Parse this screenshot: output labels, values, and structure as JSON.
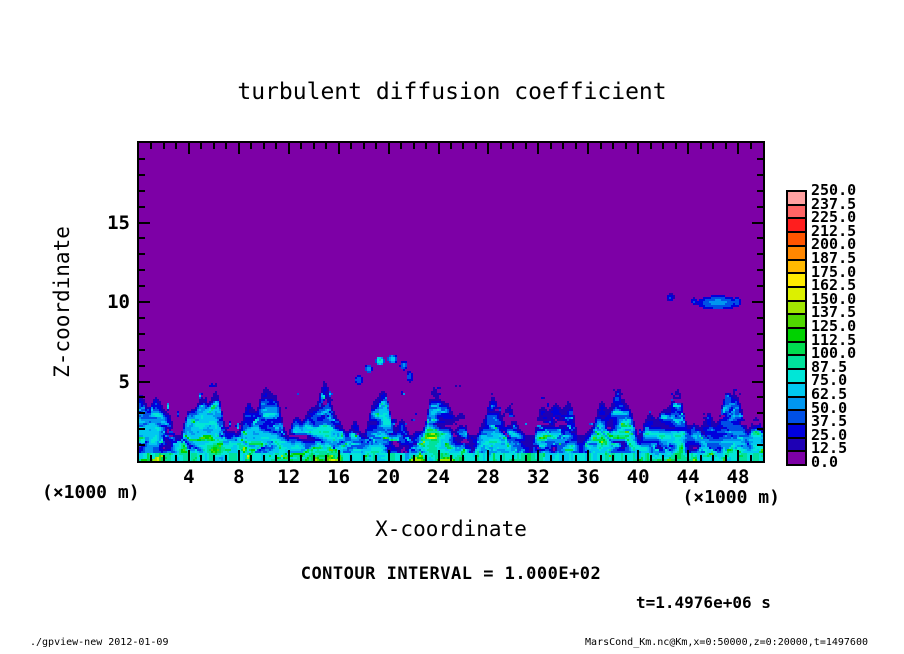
{
  "header": {
    "title": "turbulent diffusion coefficient"
  },
  "axes": {
    "x": {
      "label": "X-coordinate",
      "units": "(×1000 m)"
    },
    "y": {
      "label": "Z-coordinate",
      "units": "(×1000 m)"
    }
  },
  "annotations": {
    "contour_interval": "CONTOUR INTERVAL = 1.000E+02",
    "time": "t=1.4976e+06 s"
  },
  "footer": {
    "left": "./gpview-new  2012-01-09",
    "right": "MarsCond_Km.nc@Km,x=0:50000,z=0:20000,t=1497600"
  },
  "chart_data": {
    "type": "heatmap",
    "title": "turbulent diffusion coefficient",
    "xlabel": "X-coordinate",
    "ylabel": "Z-coordinate",
    "axis_units": "×1000 m",
    "xlim": [
      0,
      50
    ],
    "ylim": [
      0,
      20
    ],
    "x_ticks": [
      4,
      8,
      12,
      16,
      20,
      24,
      28,
      32,
      36,
      40,
      44,
      48
    ],
    "x_minor_step": 1,
    "x_major_step": 4,
    "y_ticks": [
      5,
      10,
      15
    ],
    "y_minor_step": 1,
    "y_major_step": 5,
    "grid": false,
    "contour_interval": "1.000E+02",
    "time": "t=1.4976e+06 s",
    "colorbar": {
      "position": "right",
      "labels_top_down": [
        "250.0",
        "237.5",
        "225.0",
        "212.5",
        "200.0",
        "187.5",
        "175.0",
        "162.5",
        "150.0",
        "137.5",
        "125.0",
        "112.5",
        "100.0",
        "87.5",
        "75.0",
        "62.5",
        "50.0",
        "37.5",
        "25.0",
        "12.5",
        "0.0"
      ],
      "colors_top_down": [
        "#FFA0A0",
        "#FF6464",
        "#FF1E1E",
        "#FF5500",
        "#FF8700",
        "#FFB900",
        "#FFEB00",
        "#DCF000",
        "#A0E600",
        "#50D700",
        "#00D200",
        "#00DC50",
        "#00E19B",
        "#00E6D7",
        "#00C8F0",
        "#0096F0",
        "#0050E6",
        "#0000DC",
        "#1E00B4",
        "#7D00A6"
      ]
    },
    "field": {
      "description": "Uniform near-zero field (0-12.5 band, purple) above a turbulent boundary layer; enhanced diffusion (~12.5-150, blues/cyans with filament streaks) below z~2-5 (x1000 m) with plume crests spaced ~4-5 units; scattered small detached patches (~25-60) between z~5 and z~10.5.",
      "background_band": [
        0,
        12.5
      ],
      "boundary_layer_top_range": [
        1.8,
        5.2
      ],
      "layer_value_range": [
        12.5,
        150
      ],
      "blobs": [
        {
          "x": 46.4,
          "z": 9.95,
          "rx": 1.7,
          "rz": 0.45,
          "value": 55
        },
        {
          "x": 44.5,
          "z": 10.05,
          "rx": 0.28,
          "rz": 0.22,
          "value": 40
        },
        {
          "x": 42.6,
          "z": 10.3,
          "rx": 0.3,
          "rz": 0.25,
          "value": 40
        },
        {
          "x": 47.9,
          "z": 10.0,
          "rx": 0.35,
          "rz": 0.3,
          "value": 45
        },
        {
          "x": 17.6,
          "z": 5.1,
          "rx": 0.35,
          "rz": 0.3,
          "value": 50
        },
        {
          "x": 18.4,
          "z": 5.8,
          "rx": 0.3,
          "rz": 0.28,
          "value": 60
        },
        {
          "x": 19.3,
          "z": 6.3,
          "rx": 0.35,
          "rz": 0.3,
          "value": 90
        },
        {
          "x": 20.3,
          "z": 6.4,
          "rx": 0.4,
          "rz": 0.3,
          "value": 70
        },
        {
          "x": 21.2,
          "z": 6.0,
          "rx": 0.3,
          "rz": 0.3,
          "value": 55
        },
        {
          "x": 21.7,
          "z": 5.3,
          "rx": 0.3,
          "rz": 0.35,
          "value": 45
        }
      ]
    }
  }
}
